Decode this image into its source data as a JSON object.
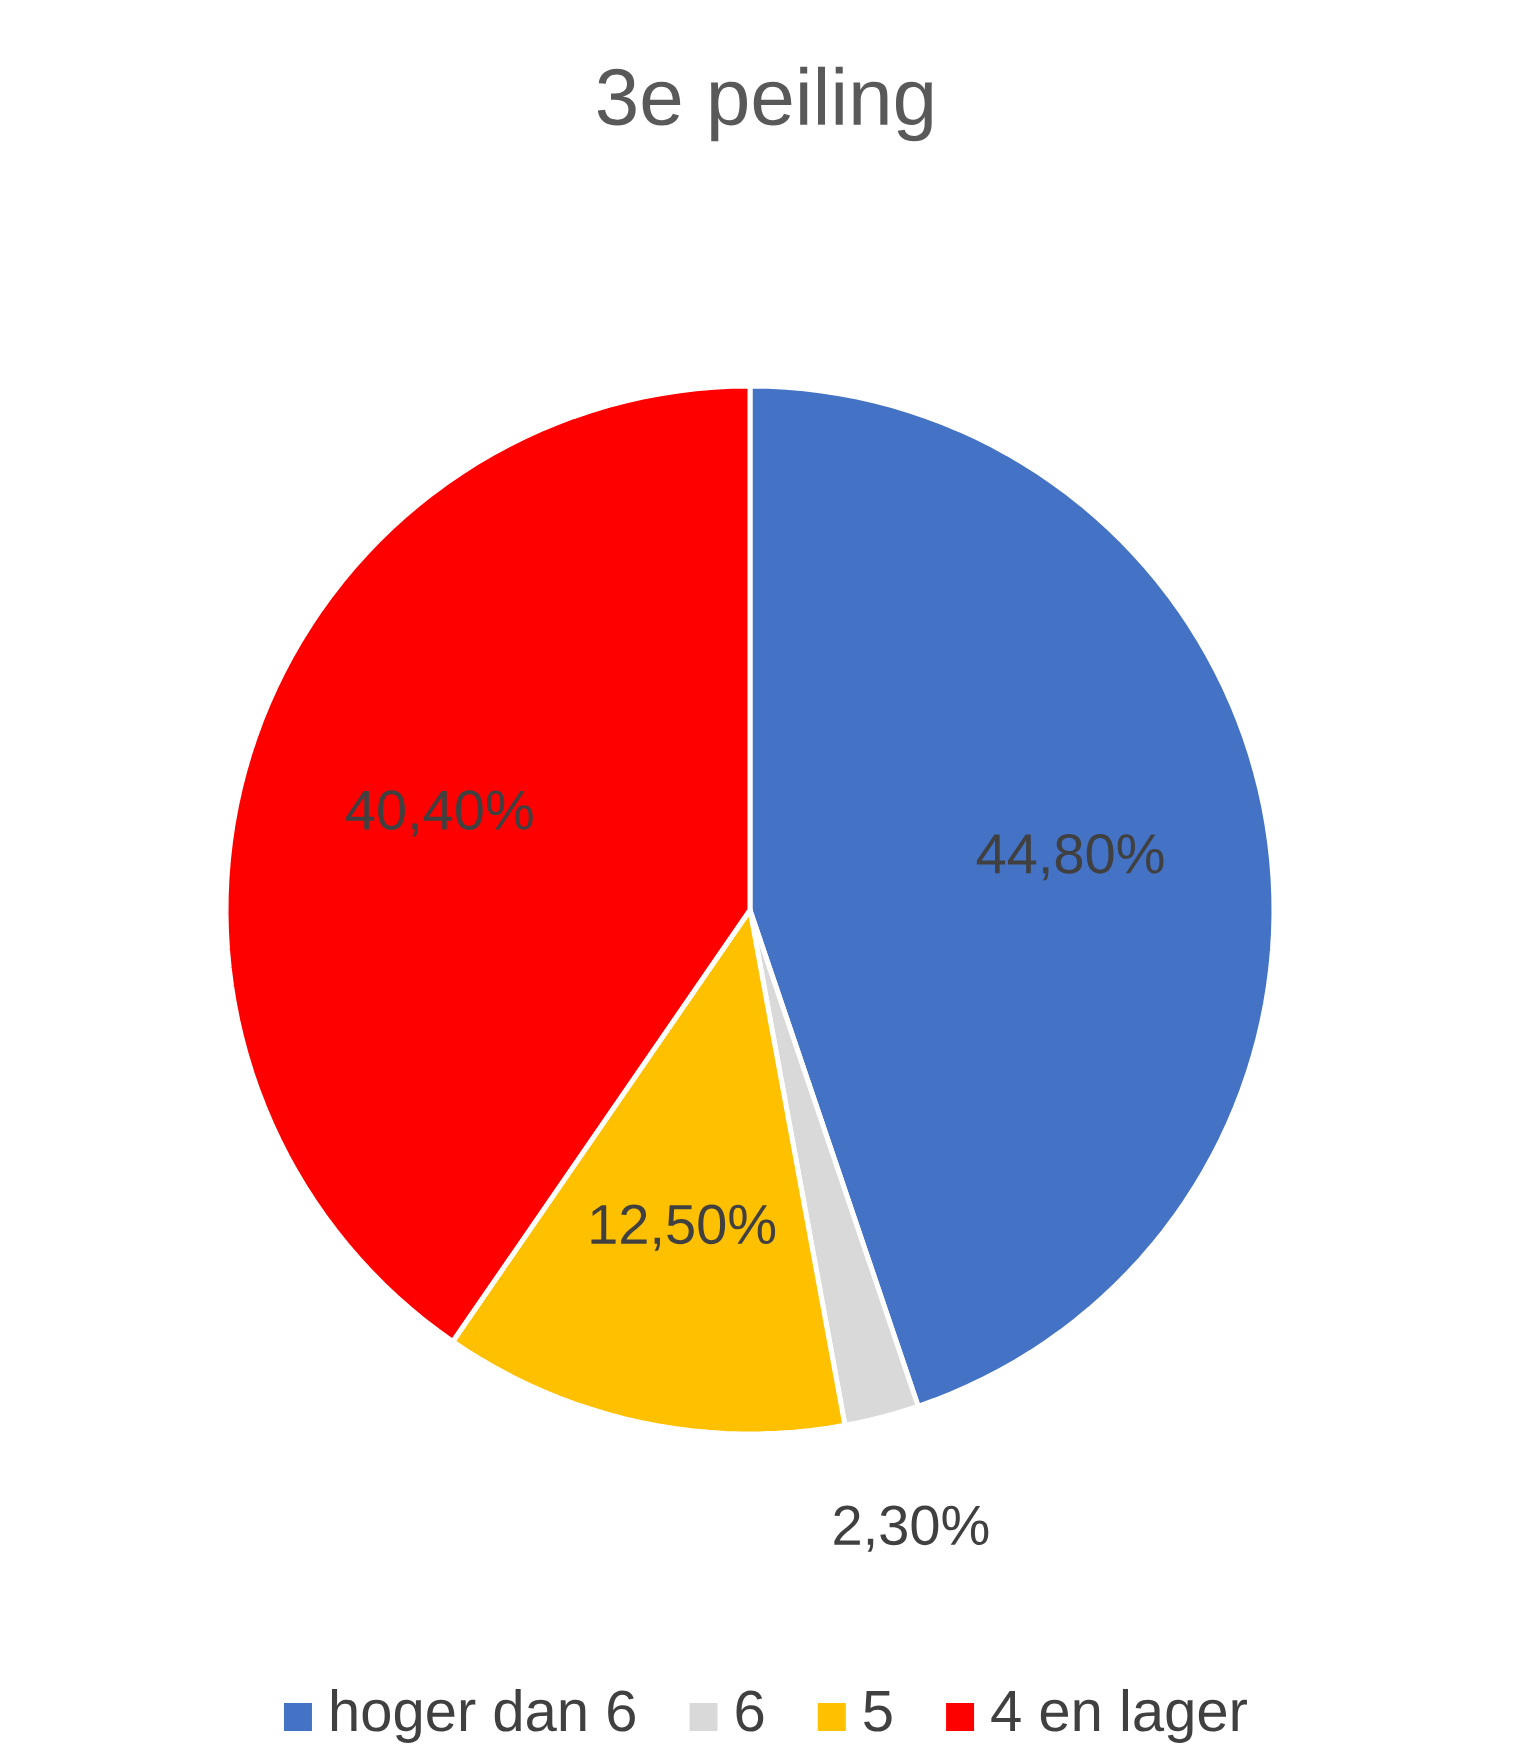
{
  "chart_data": {
    "type": "pie",
    "title": "3e peiling",
    "categories": [
      "hoger dan 6",
      "6",
      "5",
      "4 en lager"
    ],
    "values": [
      44.8,
      2.3,
      12.5,
      40.4
    ],
    "colors": [
      "#4472c4",
      "#d9d9d9",
      "#ffc000",
      "#ff0000"
    ],
    "value_labels": [
      "44,80%",
      "2,30%",
      "12,50%",
      "40,40%"
    ],
    "legend": "bottom"
  }
}
